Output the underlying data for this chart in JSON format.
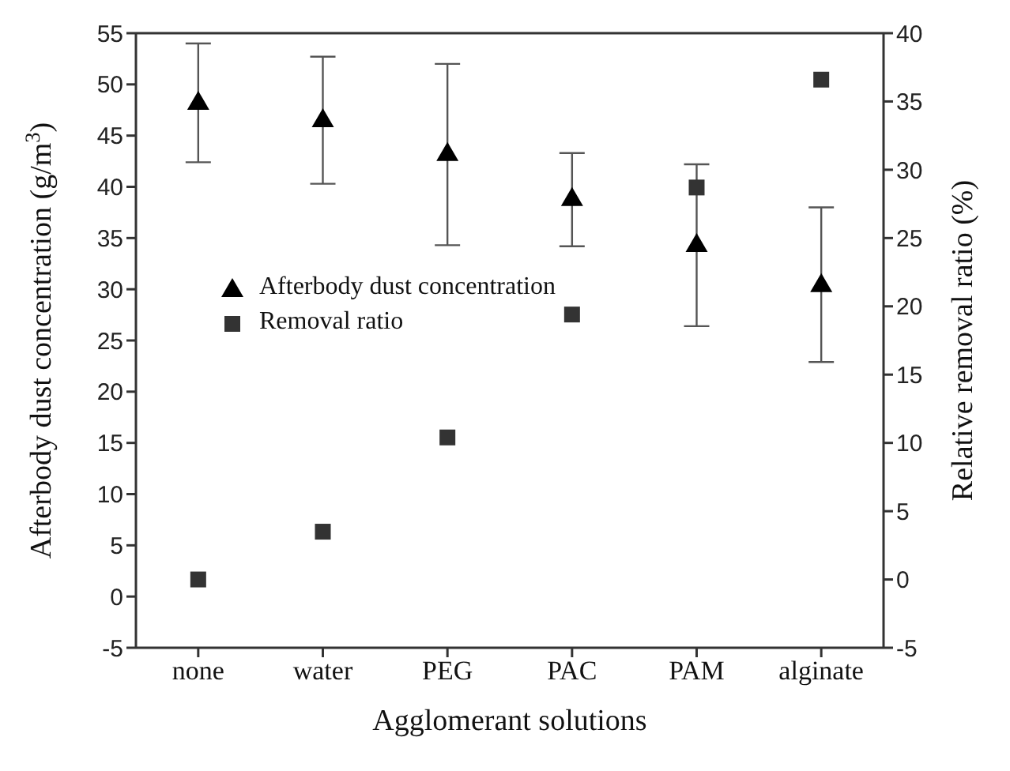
{
  "chart_data": {
    "type": "scatter",
    "xlabel": "Agglomerant solutions",
    "ylabel": "Afterbody dust concentration (g/m$^{3}$)",
    "y2label": "Relative removal ratio (%)",
    "categories": [
      "none",
      "water",
      "PEG",
      "PAC",
      "PAM",
      "alginate"
    ],
    "ylim": [
      -5,
      55
    ],
    "yticks": [
      -5,
      0,
      5,
      10,
      15,
      20,
      25,
      30,
      35,
      40,
      45,
      50,
      55
    ],
    "y2lim": [
      -5,
      40
    ],
    "y2ticks": [
      -5,
      0,
      5,
      10,
      15,
      20,
      25,
      30,
      35,
      40
    ],
    "legend": "left",
    "grid": false,
    "series": [
      {
        "name": "Afterbody dust concentration",
        "color": "#000000",
        "marker": "triangle",
        "values": [
          48.3,
          46.6,
          43.3,
          38.9,
          34.4,
          30.5
        ],
        "errors": [
          [
            42.4,
            54
          ],
          [
            40.3,
            52.7
          ],
          [
            34.3,
            52
          ],
          [
            34.2,
            43.3
          ],
          [
            26.4,
            42.2
          ],
          [
            22.9,
            38
          ]
        ]
      },
      {
        "name": "Removal ratio",
        "color": "#333333",
        "marker": "square",
        "axis": "y2",
        "values": [
          0,
          3.5,
          10.4,
          19.4,
          28.7,
          36.6
        ]
      }
    ]
  }
}
